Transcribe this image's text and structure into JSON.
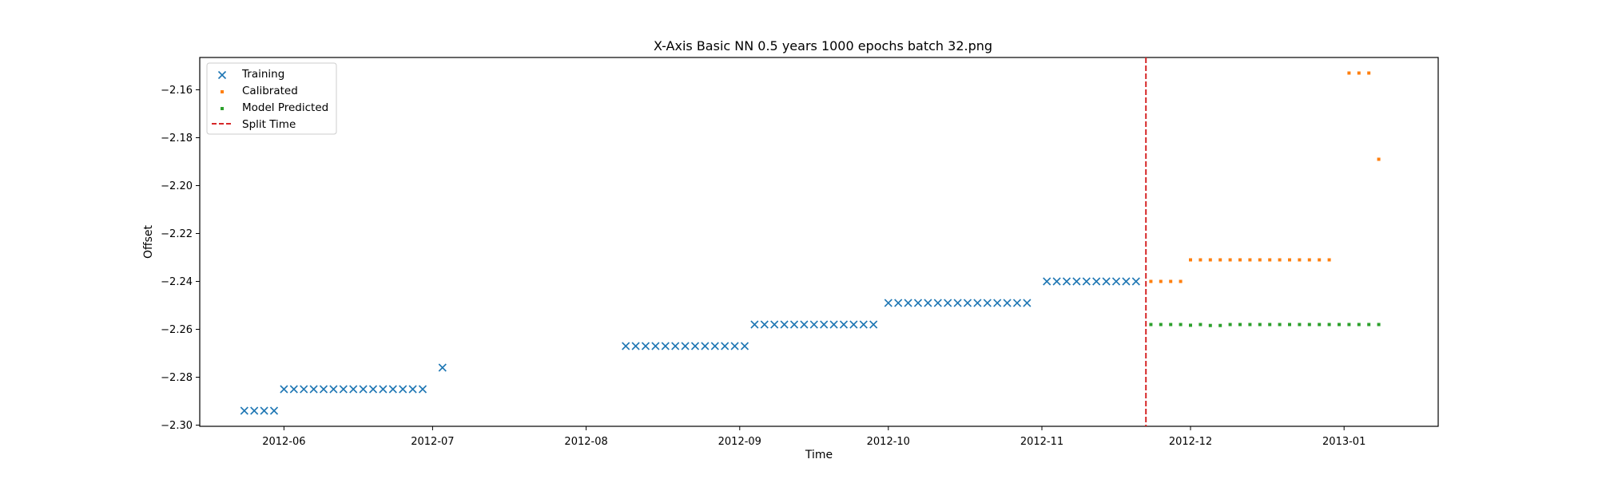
{
  "chart_data": {
    "type": "scatter",
    "title": "X-Axis Basic NN 0.5 years 1000 epochs batch 32.png",
    "xlabel": "Time",
    "ylabel": "Offset",
    "x_axis_type": "date",
    "xlim": [
      "2012-05-15",
      "2013-01-20"
    ],
    "ylim": [
      -2.3005,
      -2.1465
    ],
    "x_ticks": [
      "2012-06-01",
      "2012-07-01",
      "2012-08-01",
      "2012-09-01",
      "2012-10-01",
      "2012-11-01",
      "2012-12-01",
      "2013-01-01"
    ],
    "x_tick_labels": [
      "2012-06",
      "2012-07",
      "2012-08",
      "2012-09",
      "2012-10",
      "2012-11",
      "2012-12",
      "2013-01"
    ],
    "y_ticks": [
      -2.3,
      -2.28,
      -2.26,
      -2.24,
      -2.22,
      -2.2,
      -2.18,
      -2.16
    ],
    "y_tick_labels": [
      "−2.30",
      "−2.28",
      "−2.26",
      "−2.24",
      "−2.22",
      "−2.20",
      "−2.18",
      "−2.16"
    ],
    "grid": false,
    "legend_position": "top-left",
    "split_time": "2012-11-22",
    "series": [
      {
        "name": "Training",
        "marker": "x",
        "color": "#1f77b4",
        "points": [
          {
            "x": "2012-05-24",
            "y": -2.294
          },
          {
            "x": "2012-05-26",
            "y": -2.294
          },
          {
            "x": "2012-05-28",
            "y": -2.294
          },
          {
            "x": "2012-05-30",
            "y": -2.294
          },
          {
            "x": "2012-06-01",
            "y": -2.285
          },
          {
            "x": "2012-06-03",
            "y": -2.285
          },
          {
            "x": "2012-06-05",
            "y": -2.285
          },
          {
            "x": "2012-06-07",
            "y": -2.285
          },
          {
            "x": "2012-06-09",
            "y": -2.285
          },
          {
            "x": "2012-06-11",
            "y": -2.285
          },
          {
            "x": "2012-06-13",
            "y": -2.285
          },
          {
            "x": "2012-06-15",
            "y": -2.285
          },
          {
            "x": "2012-06-17",
            "y": -2.285
          },
          {
            "x": "2012-06-19",
            "y": -2.285
          },
          {
            "x": "2012-06-21",
            "y": -2.285
          },
          {
            "x": "2012-06-23",
            "y": -2.285
          },
          {
            "x": "2012-06-25",
            "y": -2.285
          },
          {
            "x": "2012-06-27",
            "y": -2.285
          },
          {
            "x": "2012-06-29",
            "y": -2.285
          },
          {
            "x": "2012-07-03",
            "y": -2.276
          },
          {
            "x": "2012-08-09",
            "y": -2.267
          },
          {
            "x": "2012-08-11",
            "y": -2.267
          },
          {
            "x": "2012-08-13",
            "y": -2.267
          },
          {
            "x": "2012-08-15",
            "y": -2.267
          },
          {
            "x": "2012-08-17",
            "y": -2.267
          },
          {
            "x": "2012-08-19",
            "y": -2.267
          },
          {
            "x": "2012-08-21",
            "y": -2.267
          },
          {
            "x": "2012-08-23",
            "y": -2.267
          },
          {
            "x": "2012-08-25",
            "y": -2.267
          },
          {
            "x": "2012-08-27",
            "y": -2.267
          },
          {
            "x": "2012-08-29",
            "y": -2.267
          },
          {
            "x": "2012-08-31",
            "y": -2.267
          },
          {
            "x": "2012-09-02",
            "y": -2.267
          },
          {
            "x": "2012-09-04",
            "y": -2.258
          },
          {
            "x": "2012-09-06",
            "y": -2.258
          },
          {
            "x": "2012-09-08",
            "y": -2.258
          },
          {
            "x": "2012-09-10",
            "y": -2.258
          },
          {
            "x": "2012-09-12",
            "y": -2.258
          },
          {
            "x": "2012-09-14",
            "y": -2.258
          },
          {
            "x": "2012-09-16",
            "y": -2.258
          },
          {
            "x": "2012-09-18",
            "y": -2.258
          },
          {
            "x": "2012-09-20",
            "y": -2.258
          },
          {
            "x": "2012-09-22",
            "y": -2.258
          },
          {
            "x": "2012-09-24",
            "y": -2.258
          },
          {
            "x": "2012-09-26",
            "y": -2.258
          },
          {
            "x": "2012-09-28",
            "y": -2.258
          },
          {
            "x": "2012-10-01",
            "y": -2.249
          },
          {
            "x": "2012-10-03",
            "y": -2.249
          },
          {
            "x": "2012-10-05",
            "y": -2.249
          },
          {
            "x": "2012-10-07",
            "y": -2.249
          },
          {
            "x": "2012-10-09",
            "y": -2.249
          },
          {
            "x": "2012-10-11",
            "y": -2.249
          },
          {
            "x": "2012-10-13",
            "y": -2.249
          },
          {
            "x": "2012-10-15",
            "y": -2.249
          },
          {
            "x": "2012-10-17",
            "y": -2.249
          },
          {
            "x": "2012-10-19",
            "y": -2.249
          },
          {
            "x": "2012-10-21",
            "y": -2.249
          },
          {
            "x": "2012-10-23",
            "y": -2.249
          },
          {
            "x": "2012-10-25",
            "y": -2.249
          },
          {
            "x": "2012-10-27",
            "y": -2.249
          },
          {
            "x": "2012-10-29",
            "y": -2.249
          },
          {
            "x": "2012-11-02",
            "y": -2.24
          },
          {
            "x": "2012-11-04",
            "y": -2.24
          },
          {
            "x": "2012-11-06",
            "y": -2.24
          },
          {
            "x": "2012-11-08",
            "y": -2.24
          },
          {
            "x": "2012-11-10",
            "y": -2.24
          },
          {
            "x": "2012-11-12",
            "y": -2.24
          },
          {
            "x": "2012-11-14",
            "y": -2.24
          },
          {
            "x": "2012-11-16",
            "y": -2.24
          },
          {
            "x": "2012-11-18",
            "y": -2.24
          },
          {
            "x": "2012-11-20",
            "y": -2.24
          }
        ]
      },
      {
        "name": "Calibrated",
        "marker": "s",
        "color": "#ff7f0e",
        "points": [
          {
            "x": "2012-11-23",
            "y": -2.24
          },
          {
            "x": "2012-11-25",
            "y": -2.24
          },
          {
            "x": "2012-11-27",
            "y": -2.24
          },
          {
            "x": "2012-11-29",
            "y": -2.24
          },
          {
            "x": "2012-12-01",
            "y": -2.231
          },
          {
            "x": "2012-12-03",
            "y": -2.231
          },
          {
            "x": "2012-12-05",
            "y": -2.231
          },
          {
            "x": "2012-12-07",
            "y": -2.231
          },
          {
            "x": "2012-12-09",
            "y": -2.231
          },
          {
            "x": "2012-12-11",
            "y": -2.231
          },
          {
            "x": "2012-12-13",
            "y": -2.231
          },
          {
            "x": "2012-12-15",
            "y": -2.231
          },
          {
            "x": "2012-12-17",
            "y": -2.231
          },
          {
            "x": "2012-12-19",
            "y": -2.231
          },
          {
            "x": "2012-12-21",
            "y": -2.231
          },
          {
            "x": "2012-12-23",
            "y": -2.231
          },
          {
            "x": "2012-12-25",
            "y": -2.231
          },
          {
            "x": "2012-12-27",
            "y": -2.231
          },
          {
            "x": "2012-12-29",
            "y": -2.231
          },
          {
            "x": "2013-01-02",
            "y": -2.153
          },
          {
            "x": "2013-01-04",
            "y": -2.153
          },
          {
            "x": "2013-01-06",
            "y": -2.153
          },
          {
            "x": "2013-01-08",
            "y": -2.189
          }
        ]
      },
      {
        "name": "Model Predicted",
        "marker": "s",
        "color": "#2ca02c",
        "points": [
          {
            "x": "2012-11-23",
            "y": -2.258
          },
          {
            "x": "2012-11-25",
            "y": -2.258
          },
          {
            "x": "2012-11-27",
            "y": -2.258
          },
          {
            "x": "2012-11-29",
            "y": -2.258
          },
          {
            "x": "2012-12-01",
            "y": -2.2583
          },
          {
            "x": "2012-12-03",
            "y": -2.258
          },
          {
            "x": "2012-12-05",
            "y": -2.2584
          },
          {
            "x": "2012-12-07",
            "y": -2.2584
          },
          {
            "x": "2012-12-09",
            "y": -2.258
          },
          {
            "x": "2012-12-11",
            "y": -2.258
          },
          {
            "x": "2012-12-13",
            "y": -2.258
          },
          {
            "x": "2012-12-15",
            "y": -2.258
          },
          {
            "x": "2012-12-17",
            "y": -2.258
          },
          {
            "x": "2012-12-19",
            "y": -2.258
          },
          {
            "x": "2012-12-21",
            "y": -2.258
          },
          {
            "x": "2012-12-23",
            "y": -2.258
          },
          {
            "x": "2012-12-25",
            "y": -2.258
          },
          {
            "x": "2012-12-27",
            "y": -2.258
          },
          {
            "x": "2012-12-29",
            "y": -2.258
          },
          {
            "x": "2012-12-31",
            "y": -2.258
          },
          {
            "x": "2013-01-02",
            "y": -2.258
          },
          {
            "x": "2013-01-04",
            "y": -2.258
          },
          {
            "x": "2013-01-06",
            "y": -2.258
          },
          {
            "x": "2013-01-08",
            "y": -2.258
          }
        ]
      },
      {
        "name": "Split Time",
        "type": "vline",
        "color": "#d62728",
        "linestyle": "dashed"
      }
    ]
  }
}
